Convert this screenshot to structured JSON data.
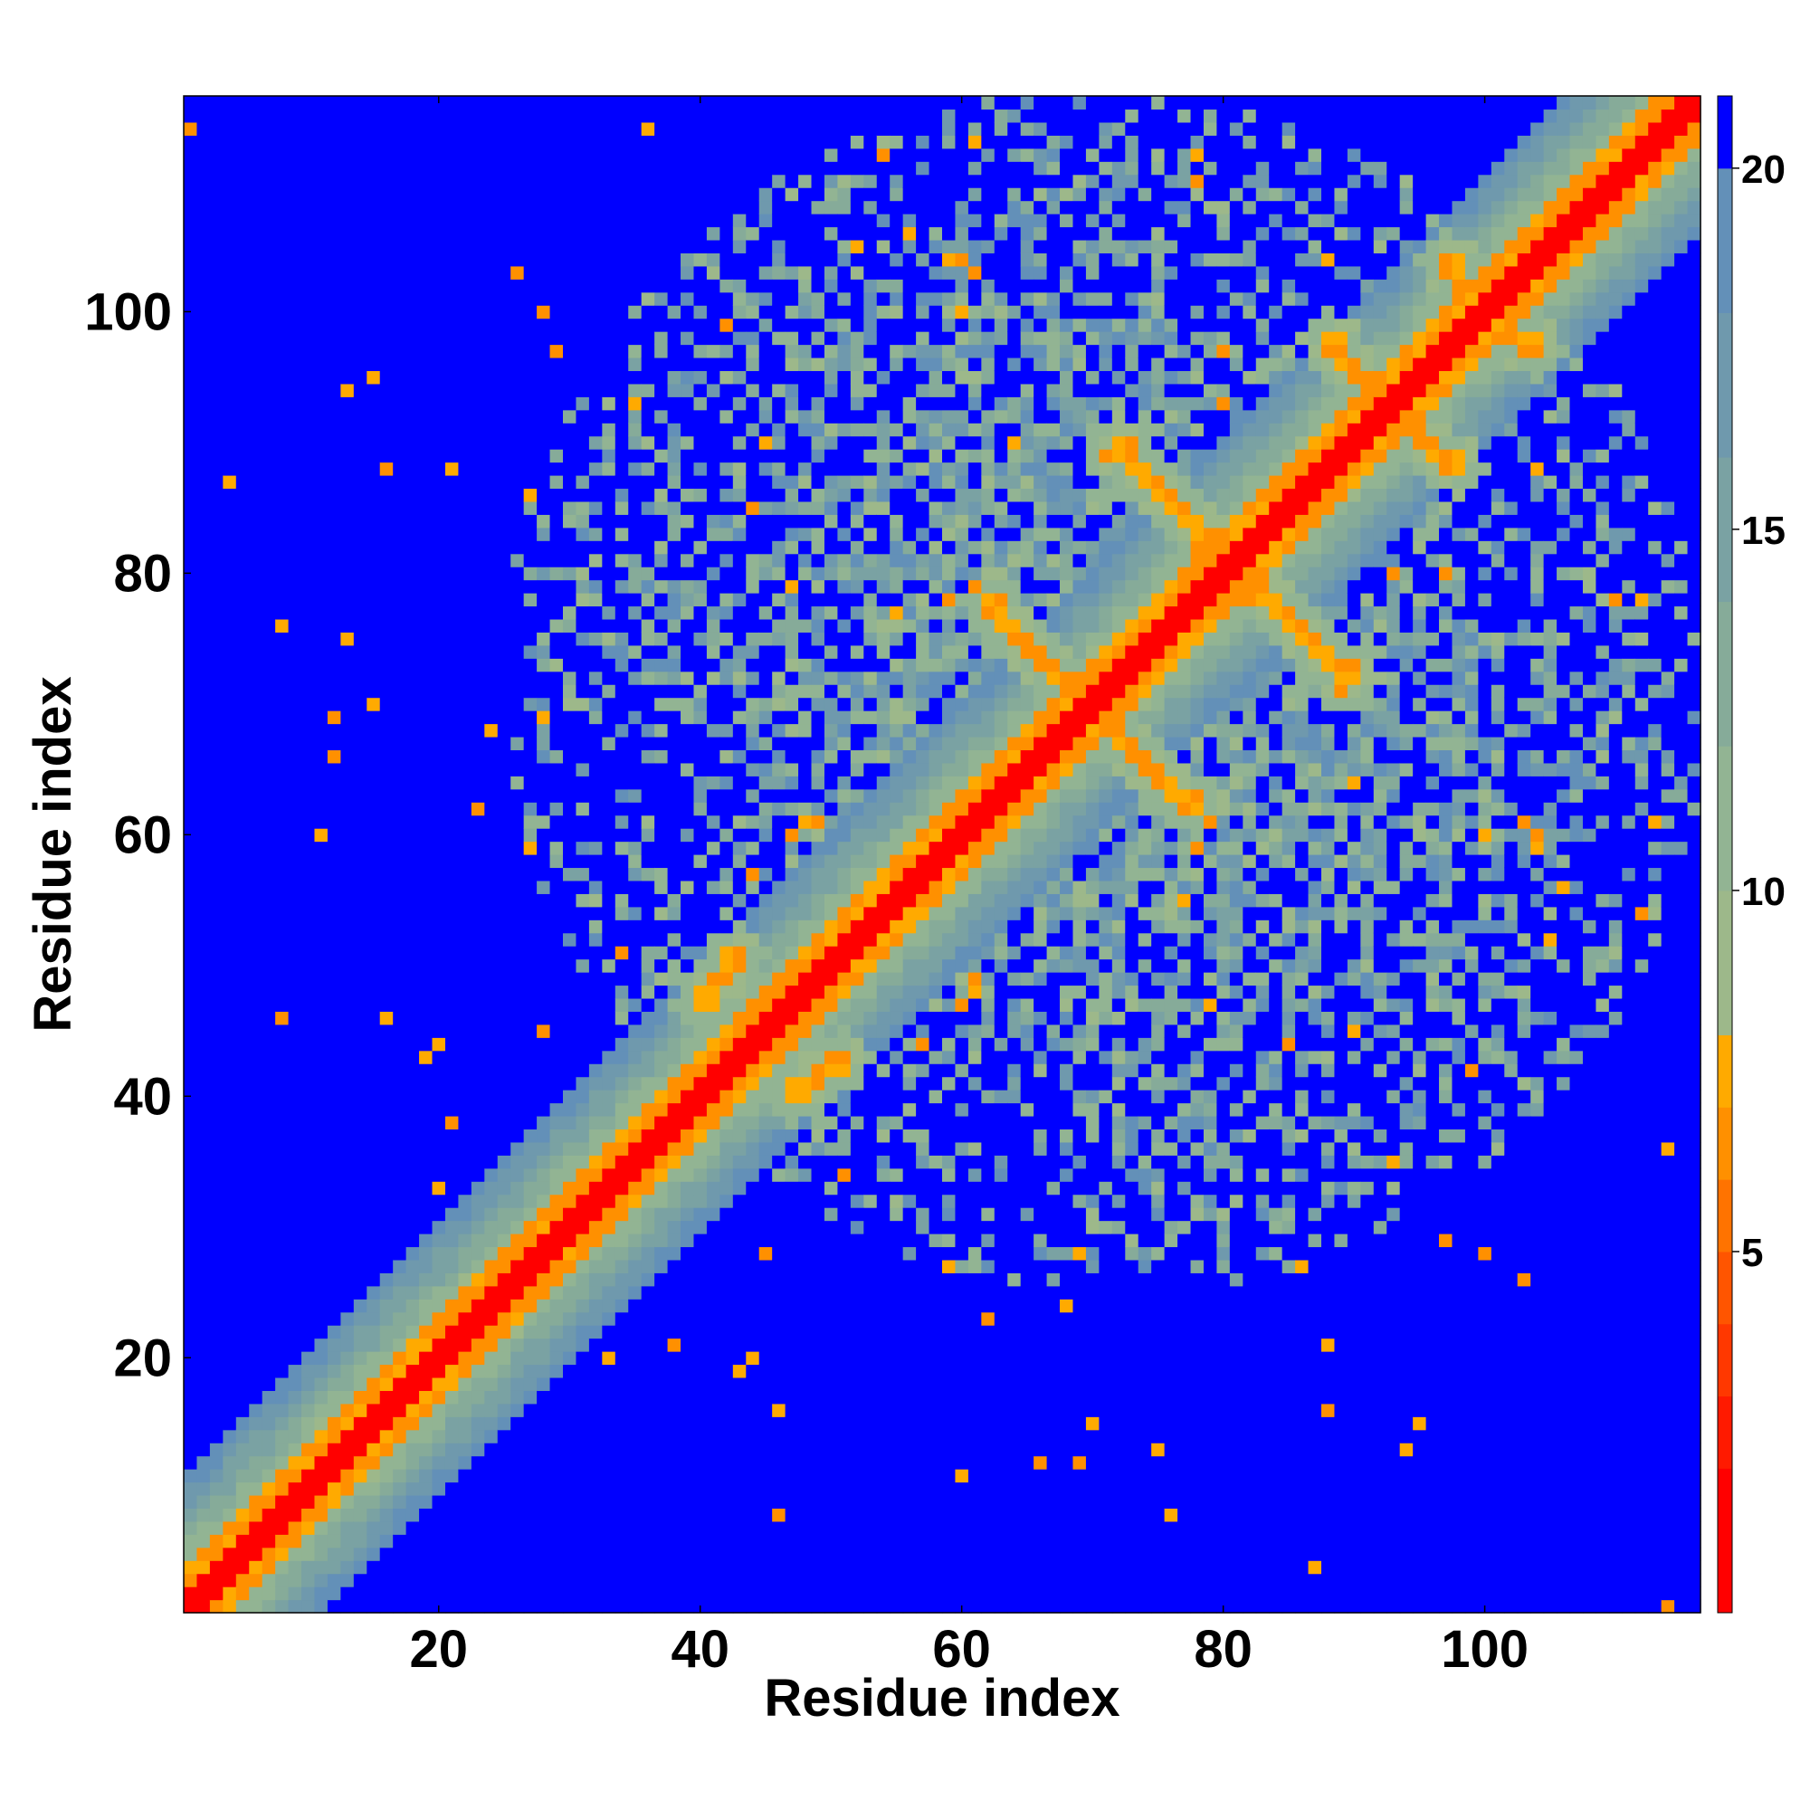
{
  "chart_data": {
    "type": "heatmap",
    "title": "",
    "xlabel": "Residue index",
    "ylabel": "Residue index",
    "n_residues": 116,
    "xlim": [
      1,
      116
    ],
    "ylim": [
      1,
      116
    ],
    "x_ticks": [
      20,
      40,
      60,
      80,
      100
    ],
    "y_ticks": [
      20,
      40,
      60,
      80,
      100
    ],
    "colorbar": {
      "ticks": [
        5,
        10,
        15,
        20
      ],
      "range": [
        0,
        21
      ],
      "levels": [
        {
          "max": 2,
          "color": "#ff0000"
        },
        {
          "max": 3,
          "color": "#ff1a00"
        },
        {
          "max": 4,
          "color": "#ff3800"
        },
        {
          "max": 5,
          "color": "#ff5500"
        },
        {
          "max": 6,
          "color": "#ff7300"
        },
        {
          "max": 7,
          "color": "#ff9000"
        },
        {
          "max": 8,
          "color": "#ffaa00"
        },
        {
          "max": 10,
          "color": "#9db88a"
        },
        {
          "max": 12,
          "color": "#92b493"
        },
        {
          "max": 14,
          "color": "#86ab99"
        },
        {
          "max": 16,
          "color": "#7aa2a3"
        },
        {
          "max": 18,
          "color": "#6f99ad"
        },
        {
          "max": 20,
          "color": "#6390b8"
        },
        {
          "max": 99,
          "color": "#0000ff"
        }
      ]
    },
    "background_value": 21,
    "background_color": "#0000ff",
    "features": {
      "diagonal_band": {
        "core_width": 1,
        "orange_width": 3,
        "halo_width": 10
      },
      "contact_lines": [
        {
          "from": [
            62,
            78
          ],
          "to": [
            69,
            70
          ]
        },
        {
          "from": [
            72,
            90
          ],
          "to": [
            79,
            82
          ]
        },
        {
          "from": [
            88,
            98
          ],
          "to": [
            94,
            91
          ]
        },
        {
          "from": [
            97,
            104
          ],
          "to": [
            101,
            99
          ]
        },
        {
          "from": [
            47,
            40
          ],
          "to": [
            51,
            43
          ]
        }
      ],
      "cloud_region": {
        "center": [
          72,
          70
        ],
        "radius": 45
      }
    }
  }
}
